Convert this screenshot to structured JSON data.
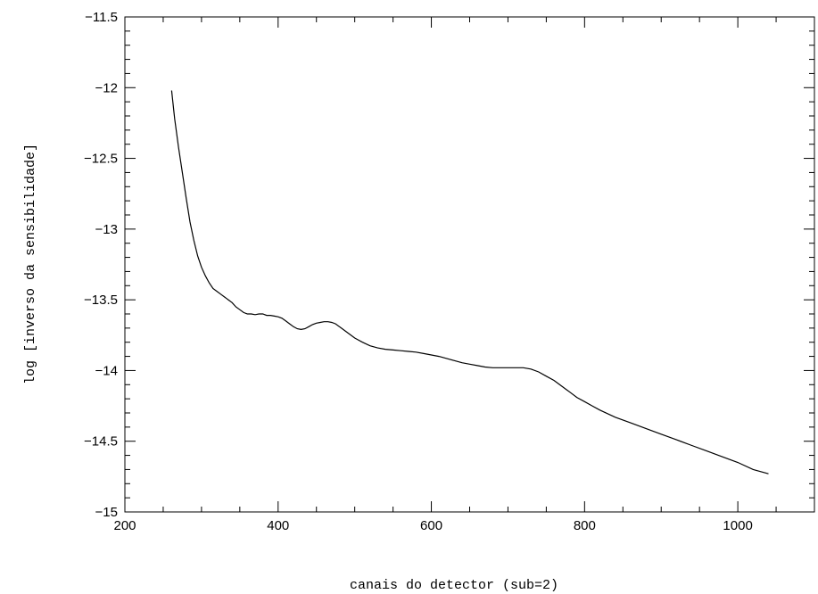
{
  "chart_data": {
    "type": "line",
    "title": "",
    "xlabel": "canais do detector (sub=2)",
    "ylabel": "log [inverso da sensibilidade]",
    "xlim": [
      200,
      1100
    ],
    "ylim": [
      -15,
      -11.5
    ],
    "xticks": [
      200,
      400,
      600,
      800,
      1000
    ],
    "xtick_labels": [
      "200",
      "400",
      "600",
      "800",
      "1000"
    ],
    "yticks": [
      -15,
      -14.5,
      -14,
      -13.5,
      -13,
      -12.5,
      -12,
      -11.5
    ],
    "ytick_labels": [
      "−15",
      "−14.5",
      "−14",
      "−13.5",
      "−13",
      "−12.5",
      "−12",
      "−11.5"
    ],
    "x_minor_step": 50,
    "y_minor_step": 0.1,
    "grid": false,
    "series": [
      {
        "x": [
          261,
          265,
          270,
          275,
          280,
          285,
          290,
          295,
          300,
          305,
          310,
          315,
          320,
          325,
          330,
          335,
          340,
          345,
          350,
          355,
          360,
          365,
          370,
          375,
          380,
          385,
          390,
          395,
          400,
          405,
          410,
          415,
          420,
          425,
          430,
          435,
          440,
          445,
          450,
          455,
          460,
          465,
          470,
          475,
          480,
          490,
          500,
          510,
          520,
          530,
          540,
          550,
          560,
          570,
          580,
          590,
          600,
          610,
          620,
          630,
          640,
          650,
          660,
          670,
          680,
          690,
          700,
          710,
          720,
          730,
          740,
          750,
          760,
          770,
          780,
          790,
          800,
          810,
          820,
          840,
          860,
          880,
          900,
          920,
          940,
          960,
          980,
          1000,
          1020,
          1040
        ],
        "y": [
          -12.02,
          -12.22,
          -12.42,
          -12.6,
          -12.78,
          -12.95,
          -13.08,
          -13.19,
          -13.27,
          -13.33,
          -13.38,
          -13.42,
          -13.44,
          -13.46,
          -13.48,
          -13.5,
          -13.52,
          -13.55,
          -13.57,
          -13.59,
          -13.6,
          -13.6,
          -13.605,
          -13.6,
          -13.6,
          -13.61,
          -13.61,
          -13.615,
          -13.62,
          -13.63,
          -13.65,
          -13.67,
          -13.69,
          -13.705,
          -13.71,
          -13.705,
          -13.69,
          -13.675,
          -13.665,
          -13.66,
          -13.655,
          -13.655,
          -13.66,
          -13.67,
          -13.69,
          -13.73,
          -13.77,
          -13.8,
          -13.825,
          -13.84,
          -13.85,
          -13.855,
          -13.86,
          -13.865,
          -13.87,
          -13.88,
          -13.89,
          -13.9,
          -13.915,
          -13.93,
          -13.945,
          -13.955,
          -13.965,
          -13.975,
          -13.98,
          -13.98,
          -13.98,
          -13.98,
          -13.98,
          -13.99,
          -14.01,
          -14.04,
          -14.07,
          -14.11,
          -14.15,
          -14.19,
          -14.22,
          -14.25,
          -14.28,
          -14.33,
          -14.37,
          -14.41,
          -14.45,
          -14.49,
          -14.53,
          -14.57,
          -14.61,
          -14.65,
          -14.7,
          -14.73
        ]
      }
    ]
  }
}
